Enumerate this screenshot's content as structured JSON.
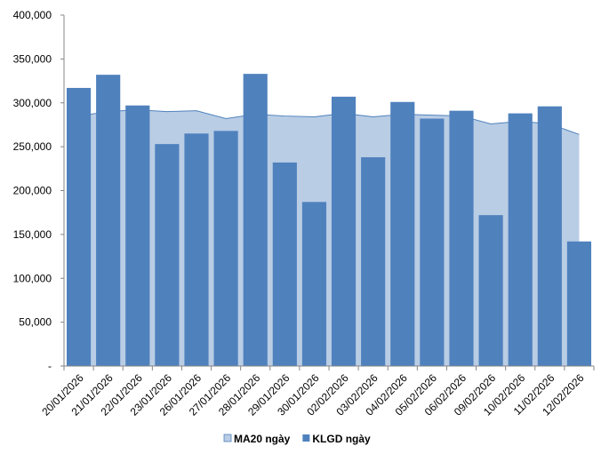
{
  "chart_data": {
    "type": "bar",
    "categories": [
      "20/01/2026",
      "21/01/2026",
      "22/01/2026",
      "23/01/2026",
      "26/01/2026",
      "27/01/2026",
      "28/01/2026",
      "29/01/2026",
      "30/01/2026",
      "02/02/2026",
      "03/02/2026",
      "04/02/2026",
      "05/02/2026",
      "06/02/2026",
      "09/02/2026",
      "10/02/2026",
      "11/02/2026",
      "12/02/2026"
    ],
    "series": [
      {
        "name": "MA20 ngày",
        "kind": "area",
        "color": "#b9cde5",
        "line_color": "#4f81bd",
        "values": [
          285000,
          290000,
          292000,
          290000,
          291000,
          282000,
          287000,
          285000,
          284000,
          288000,
          284000,
          287000,
          286000,
          285000,
          276000,
          279000,
          276000,
          264000
        ]
      },
      {
        "name": "KLGD ngày",
        "kind": "bar",
        "color": "#4f81bd",
        "values": [
          317000,
          332000,
          297000,
          253000,
          265000,
          268000,
          333000,
          232000,
          187000,
          307000,
          238000,
          301000,
          282000,
          291000,
          172000,
          288000,
          296000,
          142000
        ]
      }
    ],
    "ylim": [
      0,
      400000
    ],
    "yticks": [
      0,
      50000,
      100000,
      150000,
      200000,
      250000,
      300000,
      350000,
      400000
    ],
    "ytick_labels": [
      "-",
      "50,000",
      "100,000",
      "150,000",
      "200,000",
      "250,000",
      "300,000",
      "350,000",
      "400,000"
    ],
    "title": "",
    "xlabel": "",
    "ylabel": "",
    "grid": false,
    "legend_position": "bottom"
  }
}
